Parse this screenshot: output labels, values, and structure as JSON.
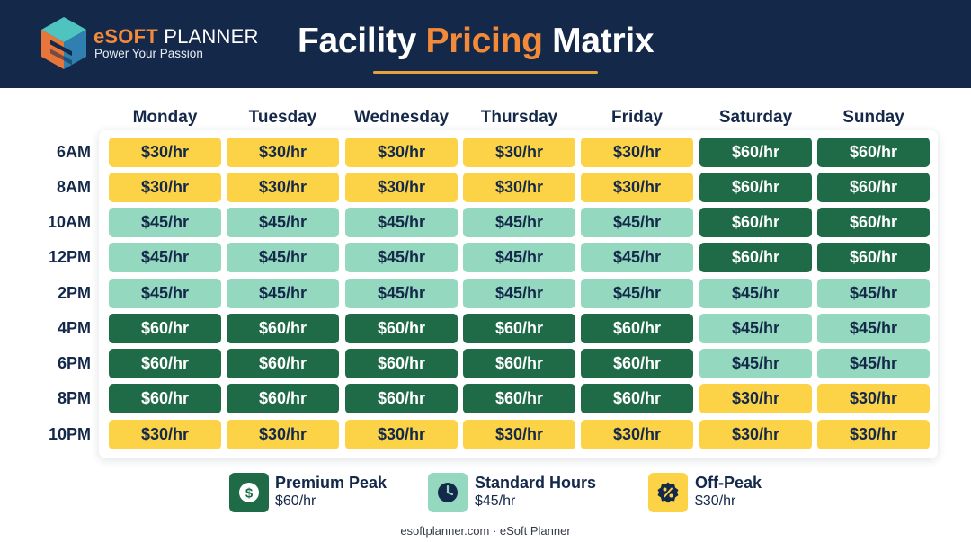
{
  "brand": {
    "name_part1": "eSOFT",
    "name_part2": " PLANNER",
    "tagline": "Power Your Passion"
  },
  "title": {
    "word1": "Facility ",
    "word2": "Pricing",
    "word3": " Matrix"
  },
  "colors": {
    "header_bg": "#14284a",
    "accent_orange": "#f28a3a",
    "premium_peak": "#1f6b48",
    "standard_hours": "#93d8bf",
    "off_peak": "#fcd346"
  },
  "days": [
    "Monday",
    "Tuesday",
    "Wednesday",
    "Thursday",
    "Friday",
    "Saturday",
    "Sunday"
  ],
  "times": [
    "6AM",
    "8AM",
    "10AM",
    "12PM",
    "2PM",
    "4PM",
    "6PM",
    "8PM",
    "10PM"
  ],
  "rows": [
    [
      "$30/hr",
      "$30/hr",
      "$30/hr",
      "$30/hr",
      "$30/hr",
      "$60/hr",
      "$60/hr"
    ],
    [
      "$30/hr",
      "$30/hr",
      "$30/hr",
      "$30/hr",
      "$30/hr",
      "$60/hr",
      "$60/hr"
    ],
    [
      "$45/hr",
      "$45/hr",
      "$45/hr",
      "$45/hr",
      "$45/hr",
      "$60/hr",
      "$60/hr"
    ],
    [
      "$45/hr",
      "$45/hr",
      "$45/hr",
      "$45/hr",
      "$45/hr",
      "$60/hr",
      "$60/hr"
    ],
    [
      "$45/hr",
      "$45/hr",
      "$45/hr",
      "$45/hr",
      "$45/hr",
      "$45/hr",
      "$45/hr"
    ],
    [
      "$60/hr",
      "$60/hr",
      "$60/hr",
      "$60/hr",
      "$60/hr",
      "$45/hr",
      "$45/hr"
    ],
    [
      "$60/hr",
      "$60/hr",
      "$60/hr",
      "$60/hr",
      "$60/hr",
      "$45/hr",
      "$45/hr"
    ],
    [
      "$60/hr",
      "$60/hr",
      "$60/hr",
      "$60/hr",
      "$60/hr",
      "$30/hr",
      "$30/hr"
    ],
    [
      "$30/hr",
      "$30/hr",
      "$30/hr",
      "$30/hr",
      "$30/hr",
      "$30/hr",
      "$30/hr"
    ]
  ],
  "legend": [
    {
      "tier": "peak",
      "title": "Premium Peak",
      "price": "$60/hr",
      "icon": "dollar-icon"
    },
    {
      "tier": "standard",
      "title": "Standard Hours",
      "price": "$45/hr",
      "icon": "clock-icon"
    },
    {
      "tier": "off",
      "title": "Off-Peak",
      "price": "$30/hr",
      "icon": "percent-icon"
    }
  ],
  "footer": "esoftplanner.com · eSoft Planner"
}
